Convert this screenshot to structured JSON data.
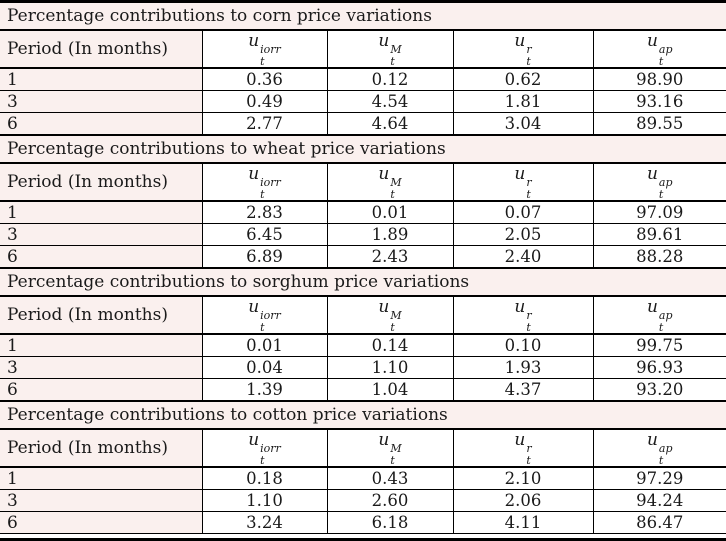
{
  "table": {
    "period_header": "Period (In months)",
    "columns": [
      {
        "base": "u",
        "sub": "t",
        "sup": "iorr"
      },
      {
        "base": "u",
        "sub": "t",
        "sup": "M"
      },
      {
        "base": "u",
        "sub": "t",
        "sup": "r"
      },
      {
        "base": "u",
        "sub": "t",
        "sup": "ap"
      }
    ],
    "sections": [
      {
        "commodity": "corn",
        "title": "Percentage contributions to corn price variations",
        "rows": [
          {
            "period": "1",
            "values": [
              "0.36",
              "0.12",
              "0.62",
              "98.90"
            ]
          },
          {
            "period": "3",
            "values": [
              "0.49",
              "4.54",
              "1.81",
              "93.16"
            ]
          },
          {
            "period": "6",
            "values": [
              "2.77",
              "4.64",
              "3.04",
              "89.55"
            ]
          }
        ]
      },
      {
        "commodity": "wheat",
        "title": "Percentage contributions to wheat price variations",
        "rows": [
          {
            "period": "1",
            "values": [
              "2.83",
              "0.01",
              "0.07",
              "97.09"
            ]
          },
          {
            "period": "3",
            "values": [
              "6.45",
              "1.89",
              "2.05",
              "89.61"
            ]
          },
          {
            "period": "6",
            "values": [
              "6.89",
              "2.43",
              "2.40",
              "88.28"
            ]
          }
        ]
      },
      {
        "commodity": "sorghum",
        "title": "Percentage contributions to sorghum price variations",
        "rows": [
          {
            "period": "1",
            "values": [
              "0.01",
              "0.14",
              "0.10",
              "99.75"
            ]
          },
          {
            "period": "3",
            "values": [
              "0.04",
              "1.10",
              "1.93",
              "96.93"
            ]
          },
          {
            "period": "6",
            "values": [
              "1.39",
              "1.04",
              "4.37",
              "93.20"
            ]
          }
        ]
      },
      {
        "commodity": "cotton",
        "title": "Percentage contributions to cotton price variations",
        "rows": [
          {
            "period": "1",
            "values": [
              "0.18",
              "0.43",
              "2.10",
              "97.29"
            ]
          },
          {
            "period": "3",
            "values": [
              "1.10",
              "2.60",
              "2.06",
              "94.24"
            ]
          },
          {
            "period": "6",
            "values": [
              "3.24",
              "6.18",
              "4.11",
              "86.47"
            ]
          }
        ]
      }
    ]
  },
  "colors": {
    "row_tint": "#faf0ee",
    "cell_bg": "#ffffff",
    "border": "#000000",
    "text": "#1a1a1a"
  }
}
